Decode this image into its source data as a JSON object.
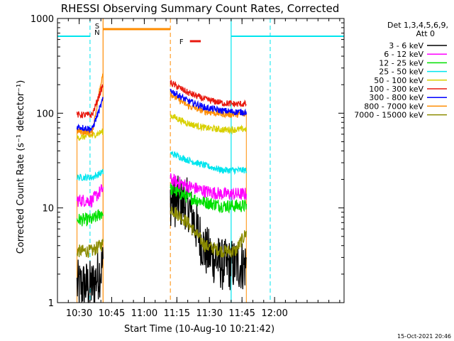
{
  "chart_data": {
    "type": "line",
    "title": "RHESSI Observing Summary Count Rates, Corrected",
    "xlabel": "Start Time (10-Aug-10 10:21:42)",
    "ylabel": "Corrected Count Rate (s⁻¹ detector⁻¹)",
    "yscale": "log",
    "ylim": [
      1,
      1000
    ],
    "xlim_minutes_after_1020": [
      0,
      44
    ],
    "x_ticks": [
      "10:30",
      "10:45",
      "11:00",
      "11:15",
      "11:30",
      "11:45",
      "12:00"
    ],
    "y_ticks": [
      "1",
      "10",
      "100",
      "1000"
    ],
    "grid": false,
    "legend_position": "outside-right",
    "legend_header": [
      "Det 1,3,4,5,6,9,",
      "Att 0"
    ],
    "timestamp": "15-Oct-2021 20:46",
    "annotations": [
      {
        "label": "S",
        "color": "#ff8c00"
      },
      {
        "label": "N",
        "color": "#00e5ee"
      },
      {
        "label": "F",
        "color": "#e8190f"
      }
    ],
    "series": [
      {
        "name": "3 - 6 keV",
        "color": "#000000"
      },
      {
        "name": "6 - 12 keV",
        "color": "#ff00ff"
      },
      {
        "name": "12 - 25 keV",
        "color": "#00e000"
      },
      {
        "name": "25 - 50 keV",
        "color": "#00e5ee"
      },
      {
        "name": "50 - 100 keV",
        "color": "#d8d000"
      },
      {
        "name": "100 - 300 keV",
        "color": "#e8190f"
      },
      {
        "name": "300 - 800 keV",
        "color": "#0000ff"
      },
      {
        "name": "800 - 7000 keV",
        "color": "#ff8c00"
      },
      {
        "name": "7000 - 15000 keV",
        "color": "#8b8b00"
      }
    ],
    "observations": [
      {
        "band": "3 - 6 keV",
        "segment_1": [
          1.5,
          1.5,
          2.5
        ],
        "segment_2": [
          12,
          11,
          3.5,
          2.5,
          2.5,
          2.5
        ]
      },
      {
        "band": "6 - 12 keV",
        "segment_1": [
          12,
          12,
          16
        ],
        "segment_2": [
          20,
          17,
          15,
          14,
          14,
          14
        ]
      },
      {
        "band": "12 - 25 keV",
        "segment_1": [
          7.5,
          7.5,
          9
        ],
        "segment_2": [
          16,
          13,
          11.5,
          10.5,
          10.5,
          10.5
        ]
      },
      {
        "band": "25 - 50 keV",
        "segment_1": [
          21,
          21,
          24
        ],
        "segment_2": [
          38,
          32,
          28,
          25,
          25,
          25
        ]
      },
      {
        "band": "50 - 100 keV",
        "segment_1": [
          55,
          58,
          64
        ],
        "segment_2": [
          95,
          78,
          70,
          67,
          67,
          68
        ]
      },
      {
        "band": "100 - 300 keV",
        "segment_1": [
          96,
          96,
          200
        ],
        "segment_2": [
          210,
          165,
          140,
          128,
          125,
          125
        ]
      },
      {
        "band": "300 - 800 keV",
        "segment_1": [
          72,
          68,
          140
        ],
        "segment_2": [
          175,
          135,
          115,
          106,
          103,
          103
        ]
      },
      {
        "band": "800 - 7000 keV",
        "segment_1": [
          65,
          62,
          280
        ],
        "segment_2": [
          160,
          120,
          104,
          98,
          97,
          97
        ]
      },
      {
        "band": "7000 - 15000 keV",
        "segment_1": [
          3.5,
          3.5,
          4.2
        ],
        "segment_2": [
          10,
          7,
          4,
          3.5,
          3.5,
          5.5
        ]
      }
    ],
    "segment_1_times": [
      "10:30",
      "10:36",
      "10:41"
    ],
    "segment_2_times": [
      "11:12",
      "11:20",
      "11:28",
      "11:36",
      "11:42",
      "11:47"
    ]
  }
}
